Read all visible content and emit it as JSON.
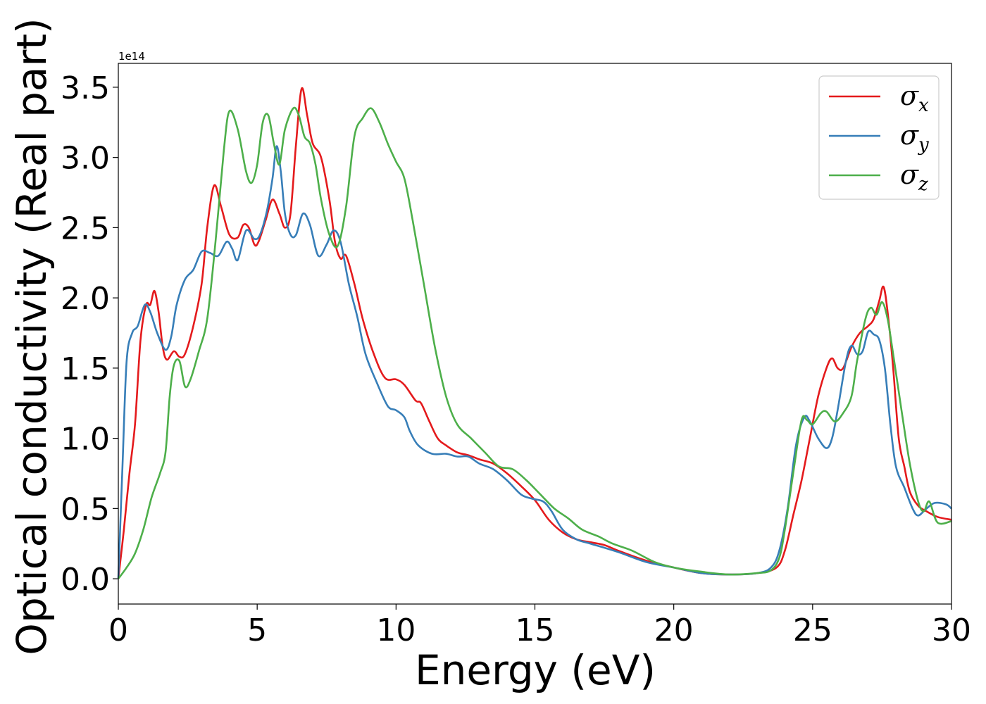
{
  "chart_data": {
    "type": "line",
    "xlabel": "Energy (eV)",
    "ylabel": "Optical conductivity (Real part)",
    "y_offset_label": "1e14",
    "xlim": [
      0,
      30
    ],
    "ylim": [
      -0.18,
      3.67
    ],
    "x_ticks": [
      0,
      5,
      10,
      15,
      20,
      25,
      30
    ],
    "x_tick_labels": [
      "0",
      "5",
      "10",
      "15",
      "20",
      "25",
      "30"
    ],
    "y_ticks": [
      0.0,
      0.5,
      1.0,
      1.5,
      2.0,
      2.5,
      3.0,
      3.5
    ],
    "y_tick_labels": [
      "0.0",
      "0.5",
      "1.0",
      "1.5",
      "2.0",
      "2.5",
      "3.0",
      "3.5"
    ],
    "grid": false,
    "legend_position": "top-right",
    "series": [
      {
        "name": "σ",
        "subscript": "x",
        "color": "#e41a1c",
        "points": [
          [
            0,
            0
          ],
          [
            0.2,
            0.35
          ],
          [
            0.4,
            0.75
          ],
          [
            0.6,
            1.1
          ],
          [
            0.8,
            1.7
          ],
          [
            1.0,
            1.95
          ],
          [
            1.15,
            1.95
          ],
          [
            1.3,
            2.05
          ],
          [
            1.45,
            1.9
          ],
          [
            1.6,
            1.65
          ],
          [
            1.75,
            1.56
          ],
          [
            2.0,
            1.62
          ],
          [
            2.2,
            1.58
          ],
          [
            2.4,
            1.6
          ],
          [
            2.7,
            1.8
          ],
          [
            3.0,
            2.1
          ],
          [
            3.2,
            2.5
          ],
          [
            3.45,
            2.8
          ],
          [
            3.7,
            2.65
          ],
          [
            4.0,
            2.45
          ],
          [
            4.3,
            2.43
          ],
          [
            4.5,
            2.52
          ],
          [
            4.7,
            2.5
          ],
          [
            4.9,
            2.38
          ],
          [
            5.05,
            2.4
          ],
          [
            5.3,
            2.55
          ],
          [
            5.55,
            2.7
          ],
          [
            5.8,
            2.6
          ],
          [
            6.0,
            2.5
          ],
          [
            6.2,
            2.6
          ],
          [
            6.4,
            3.1
          ],
          [
            6.6,
            3.49
          ],
          [
            6.8,
            3.3
          ],
          [
            7.0,
            3.1
          ],
          [
            7.3,
            3.0
          ],
          [
            7.6,
            2.7
          ],
          [
            7.8,
            2.4
          ],
          [
            8.0,
            2.28
          ],
          [
            8.2,
            2.3
          ],
          [
            8.5,
            2.1
          ],
          [
            8.8,
            1.85
          ],
          [
            9.2,
            1.6
          ],
          [
            9.6,
            1.43
          ],
          [
            10.0,
            1.42
          ],
          [
            10.3,
            1.38
          ],
          [
            10.7,
            1.27
          ],
          [
            10.9,
            1.25
          ],
          [
            11.2,
            1.12
          ],
          [
            11.5,
            1.0
          ],
          [
            11.8,
            0.95
          ],
          [
            12.2,
            0.9
          ],
          [
            12.6,
            0.88
          ],
          [
            13.0,
            0.85
          ],
          [
            13.5,
            0.82
          ],
          [
            14.0,
            0.75
          ],
          [
            14.5,
            0.66
          ],
          [
            15.0,
            0.56
          ],
          [
            15.5,
            0.42
          ],
          [
            16.0,
            0.33
          ],
          [
            16.5,
            0.28
          ],
          [
            17.0,
            0.26
          ],
          [
            17.5,
            0.24
          ],
          [
            18.0,
            0.2
          ],
          [
            19.0,
            0.13
          ],
          [
            20.0,
            0.08
          ],
          [
            21.0,
            0.04
          ],
          [
            22.0,
            0.03
          ],
          [
            23.0,
            0.04
          ],
          [
            23.7,
            0.08
          ],
          [
            24.0,
            0.2
          ],
          [
            24.3,
            0.45
          ],
          [
            24.6,
            0.7
          ],
          [
            24.9,
            1.0
          ],
          [
            25.2,
            1.3
          ],
          [
            25.5,
            1.5
          ],
          [
            25.7,
            1.57
          ],
          [
            25.9,
            1.5
          ],
          [
            26.1,
            1.5
          ],
          [
            26.4,
            1.65
          ],
          [
            26.7,
            1.75
          ],
          [
            27.0,
            1.8
          ],
          [
            27.2,
            1.85
          ],
          [
            27.4,
            1.98
          ],
          [
            27.55,
            2.08
          ],
          [
            27.7,
            1.9
          ],
          [
            27.9,
            1.5
          ],
          [
            28.1,
            1.0
          ],
          [
            28.3,
            0.8
          ],
          [
            28.5,
            0.62
          ],
          [
            28.8,
            0.52
          ],
          [
            29.1,
            0.48
          ],
          [
            29.5,
            0.44
          ],
          [
            30.0,
            0.42
          ]
        ]
      },
      {
        "name": "σ",
        "subscript": "y",
        "color": "#377eb8",
        "points": [
          [
            0,
            0
          ],
          [
            0.15,
            0.8
          ],
          [
            0.3,
            1.55
          ],
          [
            0.5,
            1.75
          ],
          [
            0.7,
            1.8
          ],
          [
            0.95,
            1.95
          ],
          [
            1.15,
            1.9
          ],
          [
            1.4,
            1.75
          ],
          [
            1.7,
            1.63
          ],
          [
            1.9,
            1.72
          ],
          [
            2.1,
            1.95
          ],
          [
            2.4,
            2.13
          ],
          [
            2.7,
            2.2
          ],
          [
            3.0,
            2.33
          ],
          [
            3.3,
            2.32
          ],
          [
            3.6,
            2.3
          ],
          [
            3.9,
            2.4
          ],
          [
            4.1,
            2.35
          ],
          [
            4.3,
            2.27
          ],
          [
            4.6,
            2.48
          ],
          [
            4.9,
            2.42
          ],
          [
            5.1,
            2.45
          ],
          [
            5.35,
            2.62
          ],
          [
            5.55,
            2.85
          ],
          [
            5.7,
            3.08
          ],
          [
            5.85,
            2.9
          ],
          [
            6.0,
            2.6
          ],
          [
            6.2,
            2.45
          ],
          [
            6.4,
            2.45
          ],
          [
            6.65,
            2.6
          ],
          [
            6.9,
            2.52
          ],
          [
            7.2,
            2.3
          ],
          [
            7.5,
            2.38
          ],
          [
            7.75,
            2.48
          ],
          [
            8.0,
            2.4
          ],
          [
            8.3,
            2.1
          ],
          [
            8.6,
            1.87
          ],
          [
            8.9,
            1.6
          ],
          [
            9.3,
            1.4
          ],
          [
            9.7,
            1.23
          ],
          [
            10.0,
            1.2
          ],
          [
            10.3,
            1.15
          ],
          [
            10.5,
            1.05
          ],
          [
            10.8,
            0.95
          ],
          [
            11.3,
            0.89
          ],
          [
            11.8,
            0.89
          ],
          [
            12.2,
            0.87
          ],
          [
            12.6,
            0.87
          ],
          [
            13.0,
            0.82
          ],
          [
            13.5,
            0.78
          ],
          [
            14.0,
            0.7
          ],
          [
            14.5,
            0.6
          ],
          [
            14.9,
            0.57
          ],
          [
            15.3,
            0.55
          ],
          [
            15.6,
            0.48
          ],
          [
            16.0,
            0.35
          ],
          [
            16.5,
            0.28
          ],
          [
            17.0,
            0.25
          ],
          [
            18.0,
            0.19
          ],
          [
            19.0,
            0.12
          ],
          [
            20.0,
            0.08
          ],
          [
            21.0,
            0.04
          ],
          [
            22.0,
            0.03
          ],
          [
            23.0,
            0.04
          ],
          [
            23.5,
            0.08
          ],
          [
            23.8,
            0.2
          ],
          [
            24.1,
            0.5
          ],
          [
            24.4,
            0.95
          ],
          [
            24.7,
            1.15
          ],
          [
            24.9,
            1.12
          ],
          [
            25.2,
            1.0
          ],
          [
            25.5,
            0.93
          ],
          [
            25.7,
            1.0
          ],
          [
            25.9,
            1.2
          ],
          [
            26.2,
            1.55
          ],
          [
            26.4,
            1.66
          ],
          [
            26.6,
            1.6
          ],
          [
            26.8,
            1.62
          ],
          [
            27.0,
            1.76
          ],
          [
            27.2,
            1.74
          ],
          [
            27.4,
            1.7
          ],
          [
            27.6,
            1.5
          ],
          [
            27.8,
            1.1
          ],
          [
            28.0,
            0.8
          ],
          [
            28.3,
            0.65
          ],
          [
            28.6,
            0.5
          ],
          [
            28.8,
            0.45
          ],
          [
            29.1,
            0.5
          ],
          [
            29.4,
            0.54
          ],
          [
            29.8,
            0.53
          ],
          [
            30.0,
            0.5
          ]
        ]
      },
      {
        "name": "σ",
        "subscript": "z",
        "color": "#4daf4a",
        "points": [
          [
            0,
            0
          ],
          [
            0.3,
            0.08
          ],
          [
            0.6,
            0.18
          ],
          [
            0.9,
            0.35
          ],
          [
            1.2,
            0.58
          ],
          [
            1.5,
            0.75
          ],
          [
            1.7,
            0.9
          ],
          [
            1.85,
            1.3
          ],
          [
            2.0,
            1.52
          ],
          [
            2.2,
            1.55
          ],
          [
            2.4,
            1.37
          ],
          [
            2.6,
            1.42
          ],
          [
            2.9,
            1.62
          ],
          [
            3.2,
            1.85
          ],
          [
            3.5,
            2.4
          ],
          [
            3.8,
            3.05
          ],
          [
            4.0,
            3.33
          ],
          [
            4.3,
            3.2
          ],
          [
            4.6,
            2.9
          ],
          [
            4.8,
            2.82
          ],
          [
            5.0,
            2.95
          ],
          [
            5.2,
            3.25
          ],
          [
            5.4,
            3.3
          ],
          [
            5.6,
            3.1
          ],
          [
            5.8,
            2.95
          ],
          [
            6.0,
            3.2
          ],
          [
            6.3,
            3.35
          ],
          [
            6.5,
            3.3
          ],
          [
            6.7,
            3.15
          ],
          [
            6.9,
            3.1
          ],
          [
            7.1,
            2.95
          ],
          [
            7.3,
            2.7
          ],
          [
            7.6,
            2.45
          ],
          [
            7.9,
            2.37
          ],
          [
            8.2,
            2.65
          ],
          [
            8.5,
            3.15
          ],
          [
            8.8,
            3.28
          ],
          [
            9.1,
            3.35
          ],
          [
            9.4,
            3.25
          ],
          [
            9.7,
            3.1
          ],
          [
            10.0,
            2.97
          ],
          [
            10.3,
            2.85
          ],
          [
            10.6,
            2.55
          ],
          [
            11.0,
            2.1
          ],
          [
            11.4,
            1.65
          ],
          [
            11.8,
            1.3
          ],
          [
            12.2,
            1.1
          ],
          [
            12.7,
            1.0
          ],
          [
            13.2,
            0.9
          ],
          [
            13.7,
            0.8
          ],
          [
            14.2,
            0.78
          ],
          [
            14.7,
            0.7
          ],
          [
            15.2,
            0.6
          ],
          [
            15.7,
            0.5
          ],
          [
            16.2,
            0.43
          ],
          [
            16.7,
            0.35
          ],
          [
            17.3,
            0.3
          ],
          [
            17.8,
            0.25
          ],
          [
            18.5,
            0.2
          ],
          [
            19.3,
            0.12
          ],
          [
            20.0,
            0.08
          ],
          [
            21.0,
            0.05
          ],
          [
            22.0,
            0.03
          ],
          [
            23.0,
            0.04
          ],
          [
            23.5,
            0.06
          ],
          [
            23.8,
            0.15
          ],
          [
            24.0,
            0.35
          ],
          [
            24.3,
            0.75
          ],
          [
            24.6,
            1.13
          ],
          [
            24.8,
            1.13
          ],
          [
            25.0,
            1.1
          ],
          [
            25.3,
            1.18
          ],
          [
            25.5,
            1.19
          ],
          [
            25.8,
            1.12
          ],
          [
            26.1,
            1.18
          ],
          [
            26.4,
            1.3
          ],
          [
            26.6,
            1.55
          ],
          [
            26.9,
            1.85
          ],
          [
            27.1,
            1.93
          ],
          [
            27.3,
            1.88
          ],
          [
            27.5,
            1.97
          ],
          [
            27.7,
            1.85
          ],
          [
            27.9,
            1.6
          ],
          [
            28.2,
            1.2
          ],
          [
            28.5,
            0.82
          ],
          [
            28.8,
            0.55
          ],
          [
            29.0,
            0.48
          ],
          [
            29.2,
            0.55
          ],
          [
            29.5,
            0.4
          ],
          [
            30.0,
            0.41
          ]
        ]
      }
    ]
  }
}
